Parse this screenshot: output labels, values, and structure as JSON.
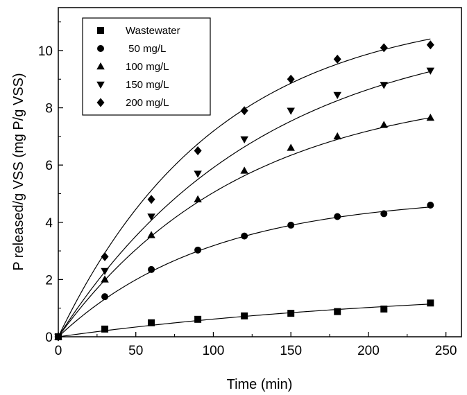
{
  "chart_data": {
    "type": "scatter",
    "title": "",
    "xlabel": "Time (min)",
    "ylabel": "P released/g VSS (mg P/g VSS)",
    "xlim": [
      0,
      260
    ],
    "ylim": [
      0,
      11.5
    ],
    "xticks": [
      0,
      50,
      100,
      150,
      200,
      250
    ],
    "yticks": [
      0,
      2,
      4,
      6,
      8,
      10
    ],
    "grid": false,
    "legend": "top-left",
    "fit_lines": true,
    "series": [
      {
        "name": "Wastewater",
        "marker": "square",
        "x": [
          0,
          30,
          60,
          90,
          120,
          150,
          180,
          210,
          240
        ],
        "y": [
          0,
          0.27,
          0.49,
          0.61,
          0.73,
          0.82,
          0.88,
          0.97,
          1.18
        ],
        "fit": {
          "a": 1.8,
          "k": 0.0042
        }
      },
      {
        "name": " 50 mg/L",
        "marker": "circle",
        "x": [
          0,
          30,
          60,
          90,
          120,
          150,
          180,
          210,
          240
        ],
        "y": [
          0,
          1.4,
          2.35,
          3.03,
          3.52,
          3.9,
          4.2,
          4.3,
          4.6
        ],
        "fit": {
          "a": 4.95,
          "k": 0.0103
        }
      },
      {
        "name": "100 mg/L",
        "marker": "triangle-up",
        "x": [
          0,
          30,
          60,
          90,
          120,
          150,
          180,
          210,
          240
        ],
        "y": [
          0,
          2.0,
          3.55,
          4.8,
          5.8,
          6.6,
          7.0,
          7.4,
          7.65
        ],
        "fit": {
          "a": 8.8,
          "k": 0.0085
        }
      },
      {
        "name": "150 mg/L",
        "marker": "triangle-down",
        "x": [
          0,
          30,
          60,
          90,
          120,
          150,
          180,
          210,
          240
        ],
        "y": [
          0,
          2.3,
          4.2,
          5.7,
          6.9,
          7.9,
          8.45,
          8.8,
          9.3
        ],
        "fit": {
          "a": 11.0,
          "k": 0.0077
        }
      },
      {
        "name": "200 mg/L",
        "marker": "diamond",
        "x": [
          0,
          30,
          60,
          90,
          120,
          150,
          180,
          210,
          240
        ],
        "y": [
          0,
          2.8,
          4.8,
          6.5,
          7.9,
          9.0,
          9.7,
          10.1,
          10.2
        ],
        "fit": {
          "a": 11.5,
          "k": 0.0098
        }
      }
    ]
  }
}
